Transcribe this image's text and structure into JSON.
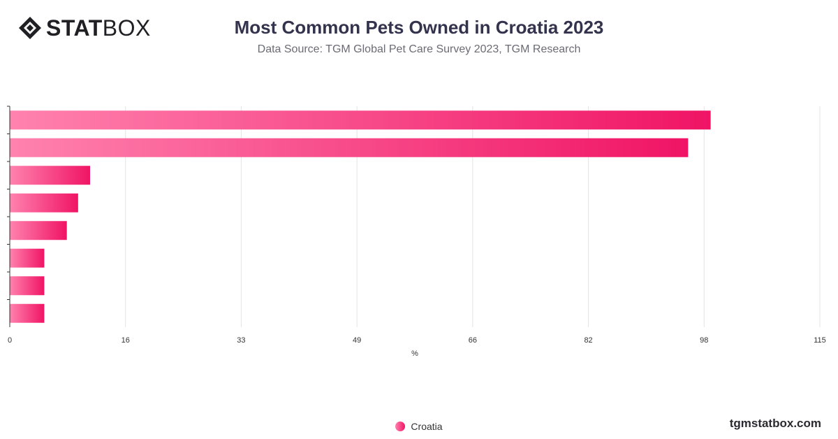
{
  "brand": {
    "logo_bold": "STAT",
    "logo_light": "BOX",
    "footer": "tgmstatbox.com"
  },
  "header": {
    "title": "Most Common Pets Owned in Croatia 2023",
    "subtitle": "Data Source: TGM Global Pet Care Survey 2023, TGM Research"
  },
  "colors": {
    "bar_start": "#ff82ae",
    "bar_end": "#f01465",
    "grid": "#e3e3e3",
    "axis": "#333333"
  },
  "chart_data": {
    "type": "bar",
    "orientation": "horizontal",
    "categories": [
      "",
      "",
      "",
      "",
      "",
      "",
      "",
      ""
    ],
    "series": [
      {
        "name": "Croatia",
        "values": [
          99.5,
          96.3,
          11.4,
          9.7,
          8.1,
          4.9,
          4.9,
          4.9
        ]
      }
    ],
    "xlabel": "%",
    "xlim": [
      0,
      115
    ],
    "xticks": [
      "0",
      "16",
      "33",
      "49",
      "66",
      "82",
      "98",
      "115"
    ],
    "grid": true,
    "legend_position": "bottom-center"
  }
}
